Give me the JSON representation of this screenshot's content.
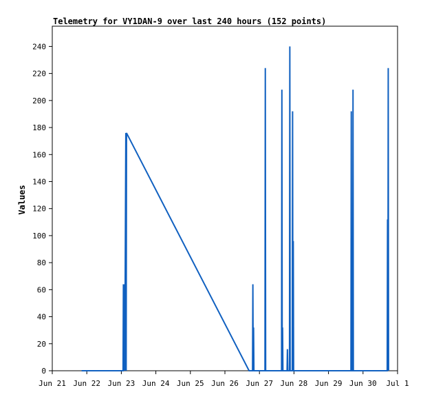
{
  "chart_data": {
    "type": "line",
    "title": "Telemetry for VY1DAN-9 over last 240 hours (152 points)",
    "xlabel": "",
    "ylabel": "Values",
    "x_ticks": [
      "Jun 21",
      "Jun 22",
      "Jun 23",
      "Jun 24",
      "Jun 25",
      "Jun 26",
      "Jun 27",
      "Jun 28",
      "Jun 29",
      "Jun 30",
      "Jul 1"
    ],
    "y_ticks": [
      0,
      20,
      40,
      60,
      80,
      100,
      120,
      140,
      160,
      180,
      200,
      220,
      240
    ],
    "xlim": [
      0,
      10
    ],
    "ylim": [
      0,
      255
    ],
    "grid": false,
    "series_color": "#1060c0",
    "series": [
      {
        "values": [
          [
            0.85,
            0
          ],
          [
            2.05,
            0
          ],
          [
            2.06,
            64
          ],
          [
            2.07,
            0
          ],
          [
            2.08,
            32
          ],
          [
            2.09,
            64
          ],
          [
            2.1,
            0
          ],
          [
            2.13,
            176
          ],
          [
            2.14,
            0
          ],
          [
            2.15,
            176
          ],
          [
            5.7,
            0
          ],
          [
            5.8,
            0
          ],
          [
            5.81,
            64
          ],
          [
            5.82,
            0
          ],
          [
            5.83,
            32
          ],
          [
            5.84,
            0
          ],
          [
            6.16,
            0
          ],
          [
            6.17,
            224
          ],
          [
            6.18,
            0
          ],
          [
            6.64,
            0
          ],
          [
            6.65,
            208
          ],
          [
            6.66,
            0
          ],
          [
            6.67,
            32
          ],
          [
            6.68,
            0
          ],
          [
            6.8,
            0
          ],
          [
            6.81,
            16
          ],
          [
            6.82,
            0
          ],
          [
            6.87,
            0
          ],
          [
            6.88,
            240
          ],
          [
            6.89,
            0
          ],
          [
            6.95,
            0
          ],
          [
            6.96,
            192
          ],
          [
            6.97,
            0
          ],
          [
            6.98,
            96
          ],
          [
            6.99,
            0
          ],
          [
            8.65,
            0
          ],
          [
            8.66,
            192
          ],
          [
            8.67,
            0
          ],
          [
            8.7,
            0
          ],
          [
            8.71,
            208
          ],
          [
            8.72,
            0
          ],
          [
            9.7,
            0
          ],
          [
            9.71,
            112
          ],
          [
            9.72,
            0
          ],
          [
            9.73,
            224
          ],
          [
            9.74,
            0
          ]
        ]
      }
    ]
  }
}
